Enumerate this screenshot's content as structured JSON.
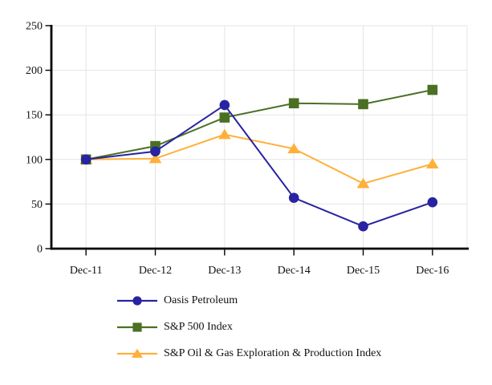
{
  "chart_data": {
    "type": "line",
    "title": "",
    "xlabel": "",
    "ylabel": "",
    "categories": [
      "Dec-11",
      "Dec-12",
      "Dec-13",
      "Dec-14",
      "Dec-15",
      "Dec-16"
    ],
    "series": [
      {
        "name": "Oasis Petroleum",
        "marker": "circle",
        "color": "#2823A0",
        "values": [
          100,
          109,
          161,
          57,
          25,
          52
        ]
      },
      {
        "name": "S&P 500 Index",
        "marker": "square",
        "color": "#4A7023",
        "values": [
          100,
          115,
          147,
          163,
          162,
          178
        ]
      },
      {
        "name": "S&P Oil & Gas Exploration & Production Index",
        "marker": "triangle",
        "color": "#FFB03A",
        "values": [
          100,
          101,
          128,
          112,
          73,
          95
        ]
      }
    ],
    "ylim": [
      0,
      250
    ],
    "yticks": [
      0,
      50,
      100,
      150,
      200,
      250
    ],
    "grid": true,
    "grid_color": "#E4E4E4",
    "axis_color": "#000000",
    "text_color": "#111111",
    "background_color": "#FFFFFF",
    "legend_position": "bottom-left"
  }
}
